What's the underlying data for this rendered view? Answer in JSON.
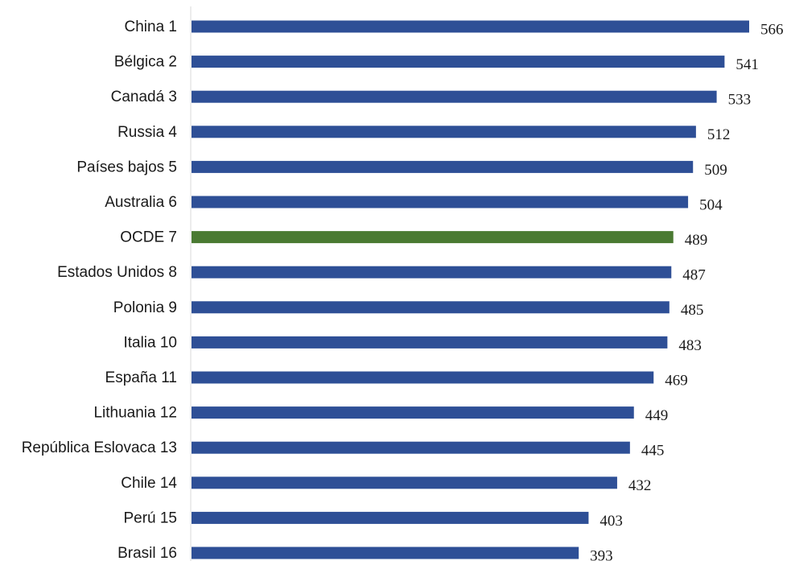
{
  "chart_data": {
    "type": "bar",
    "orientation": "horizontal",
    "categories": [
      "China 1",
      "Bélgica 2",
      "Canadá 3",
      "Russia 4",
      "Países bajos 5",
      "Australia 6",
      "OCDE 7",
      "Estados Unidos 8",
      "Polonia 9",
      "Italia 10",
      "España 11",
      "Lithuania 12",
      "República Eslovaca 13",
      "Chile 14",
      "Perú 15",
      "Brasil 16"
    ],
    "values": [
      566,
      541,
      533,
      512,
      509,
      504,
      489,
      487,
      485,
      483,
      469,
      449,
      445,
      432,
      403,
      393
    ],
    "data_labels": [
      "566",
      "541",
      "533",
      "512",
      "509",
      "504",
      "489",
      "487",
      "485",
      "483",
      "469",
      "449",
      "445",
      "432",
      "403",
      "393"
    ],
    "highlight_category": "OCDE 7",
    "colors": {
      "bar": "#2e4f96",
      "highlight": "#4a7a32",
      "axis": "#d9d9d9"
    },
    "xlim": [
      0,
      566
    ],
    "grid": false,
    "legend": "none"
  }
}
